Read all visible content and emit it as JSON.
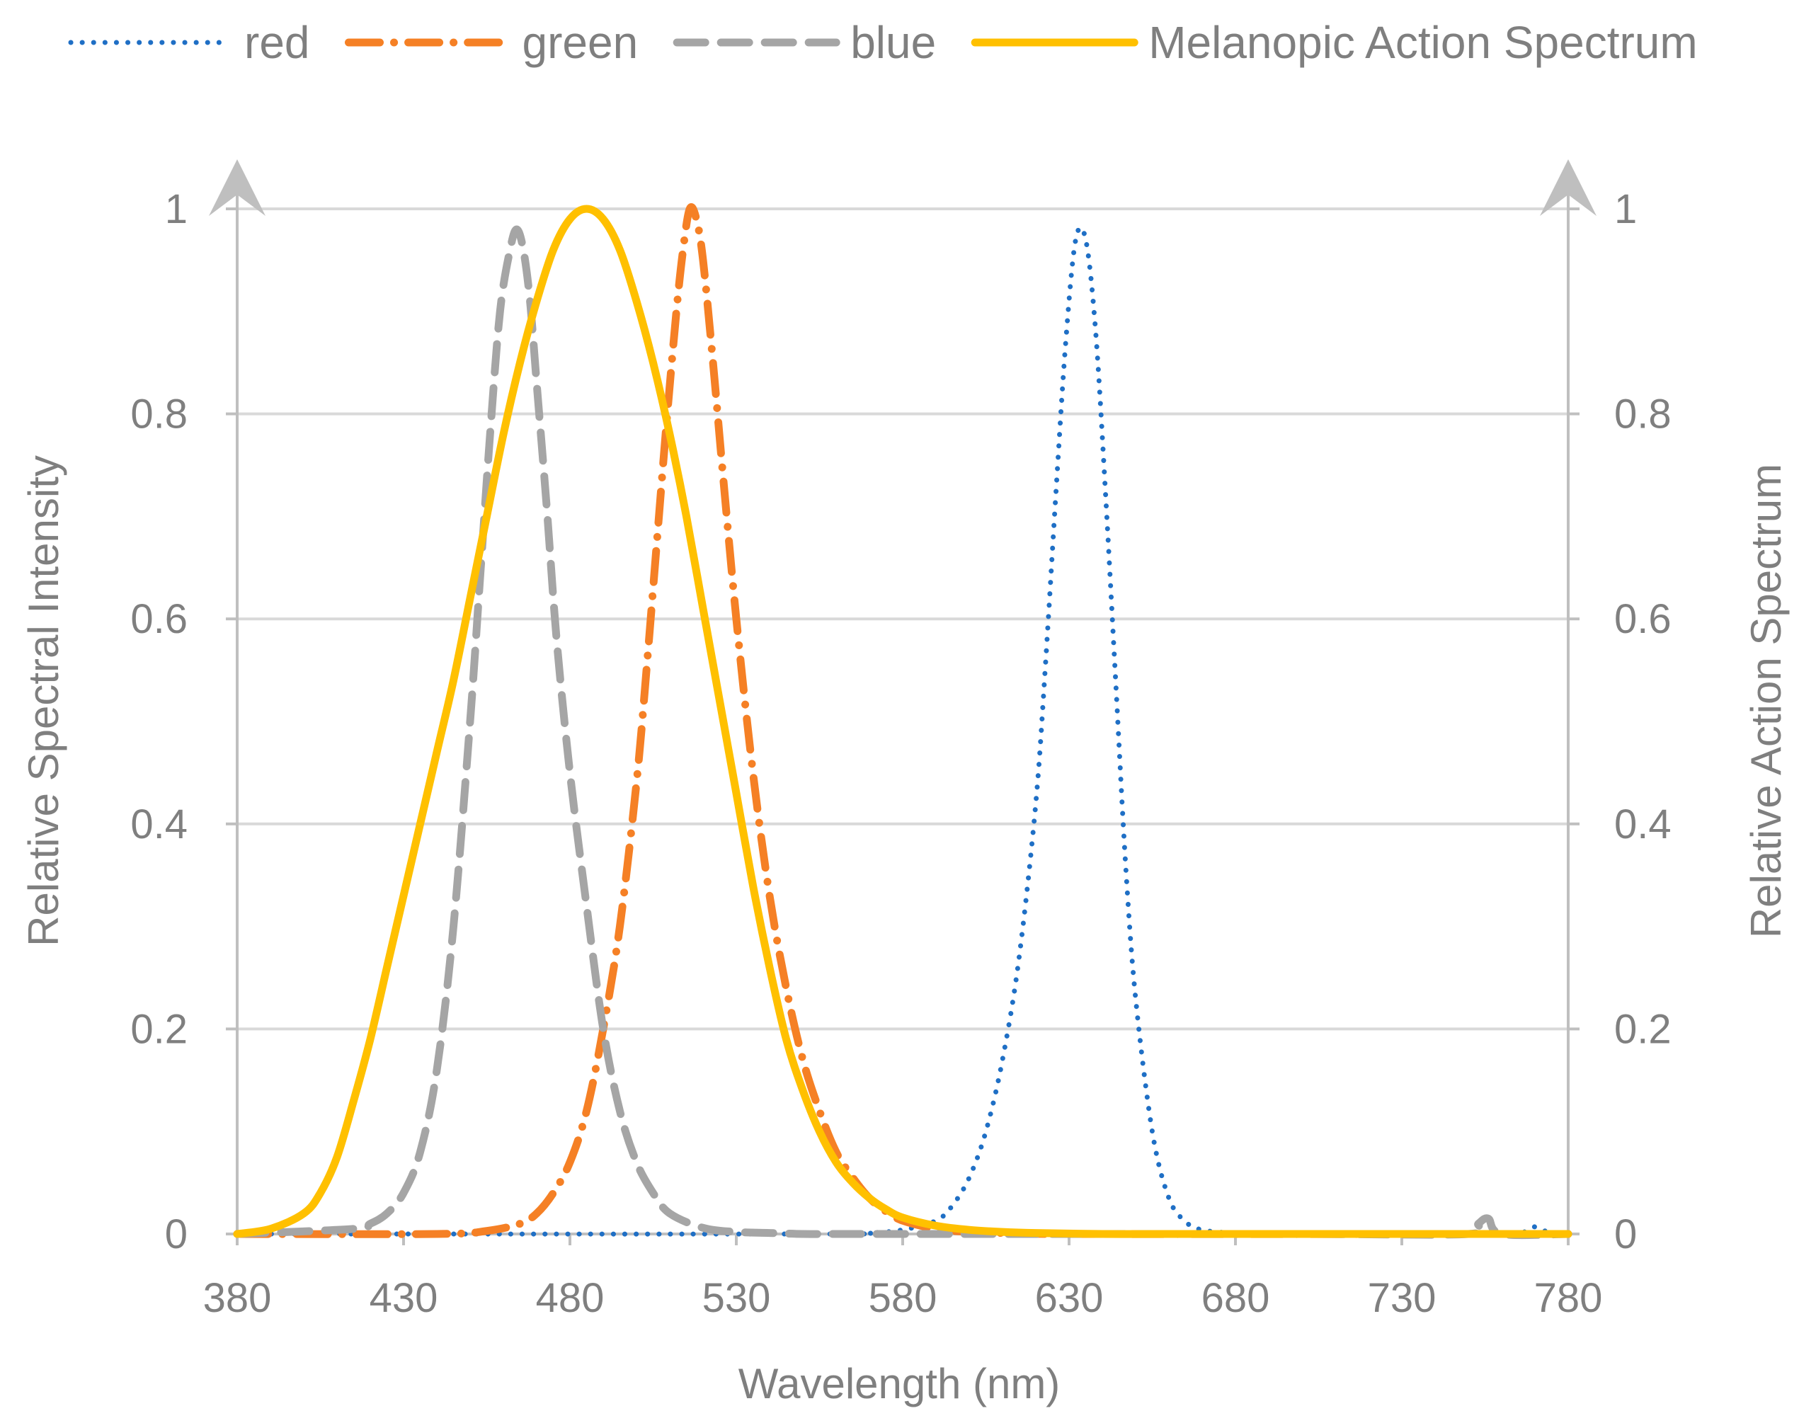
{
  "chart_data": {
    "type": "line",
    "title": "",
    "xlabel": "Wavelength (nm)",
    "ylabel": "Relative Spectral Intensity",
    "y2label": "Relative Action Spectrum",
    "xlim": [
      380,
      780
    ],
    "ylim": [
      0,
      1
    ],
    "y2lim": [
      0,
      1
    ],
    "x_ticks": [
      380,
      430,
      480,
      530,
      580,
      630,
      680,
      730,
      780
    ],
    "y_ticks": [
      0,
      0.2,
      0.4,
      0.6,
      0.8,
      1
    ],
    "y2_ticks": [
      0,
      0.2,
      0.4,
      0.6,
      0.8,
      1
    ],
    "y_tick_labels": [
      "0",
      "0.2",
      "0.4",
      "0.6",
      "0.8",
      "1"
    ],
    "y2_tick_labels": [
      "0",
      "0.2",
      "0.4",
      "0.6",
      "0.8",
      "1"
    ],
    "grid": true,
    "legend_position": "top",
    "series": [
      {
        "name": "red",
        "axis": "left",
        "color": "#1f6fc5",
        "style": "dotted",
        "x": [
          380,
          560,
          570,
          580,
          590,
          595,
          600,
          605,
          610,
          615,
          620,
          623,
          626,
          629,
          632,
          635,
          638,
          641,
          644,
          647,
          650,
          655,
          660,
          665,
          670,
          680,
          700,
          750,
          755,
          765,
          770,
          775,
          780
        ],
        "y": [
          0,
          0,
          0.001,
          0.004,
          0.013,
          0.028,
          0.055,
          0.1,
          0.17,
          0.27,
          0.42,
          0.56,
          0.72,
          0.87,
          0.97,
          0.97,
          0.88,
          0.72,
          0.54,
          0.36,
          0.23,
          0.1,
          0.035,
          0.012,
          0.004,
          0.001,
          0,
          0,
          0,
          0,
          0.007,
          0,
          0
        ]
      },
      {
        "name": "green",
        "axis": "left",
        "color": "#f58025",
        "style": "dash-dot",
        "x": [
          380,
          440,
          455,
          465,
          470,
          475,
          480,
          485,
          490,
          495,
          500,
          503,
          506,
          509,
          512,
          514,
          516,
          518,
          520,
          523,
          526,
          530,
          535,
          540,
          545,
          550,
          555,
          560,
          565,
          570,
          575,
          580,
          590,
          600,
          610,
          630,
          780
        ],
        "y": [
          0,
          0,
          0.003,
          0.01,
          0.02,
          0.04,
          0.07,
          0.12,
          0.2,
          0.3,
          0.44,
          0.55,
          0.67,
          0.79,
          0.9,
          0.96,
          1.0,
          0.99,
          0.95,
          0.85,
          0.74,
          0.6,
          0.45,
          0.33,
          0.24,
          0.17,
          0.12,
          0.08,
          0.055,
          0.035,
          0.022,
          0.013,
          0.005,
          0.002,
          0.001,
          0,
          0
        ]
      },
      {
        "name": "blue",
        "axis": "left",
        "color": "#a5a5a5",
        "style": "dashed",
        "x": [
          380,
          415,
          420,
          425,
          430,
          435,
          440,
          445,
          450,
          453,
          456,
          459,
          462,
          464,
          466,
          468,
          470,
          473,
          476,
          480,
          485,
          490,
          495,
          500,
          505,
          510,
          520,
          530,
          540,
          550,
          560,
          580,
          600,
          700,
          750,
          753,
          756,
          760,
          780
        ],
        "y": [
          0,
          0.005,
          0.01,
          0.02,
          0.04,
          0.08,
          0.16,
          0.3,
          0.5,
          0.64,
          0.78,
          0.9,
          0.96,
          0.98,
          0.96,
          0.91,
          0.83,
          0.71,
          0.58,
          0.45,
          0.32,
          0.2,
          0.12,
          0.07,
          0.04,
          0.02,
          0.006,
          0.002,
          0.001,
          0,
          0,
          0,
          0,
          0,
          0,
          0.01,
          0.015,
          0,
          0
        ]
      },
      {
        "name": "Melanopic Action Spectrum",
        "axis": "right",
        "color": "#ffc000",
        "style": "solid",
        "x": [
          380,
          390,
          400,
          405,
          410,
          415,
          420,
          425,
          430,
          435,
          440,
          445,
          450,
          455,
          460,
          465,
          470,
          475,
          480,
          485,
          490,
          495,
          500,
          505,
          510,
          515,
          520,
          525,
          530,
          535,
          540,
          545,
          550,
          555,
          560,
          565,
          570,
          575,
          580,
          590,
          600,
          610,
          620,
          640,
          660,
          700,
          780
        ],
        "y": [
          0,
          0.005,
          0.02,
          0.04,
          0.075,
          0.13,
          0.19,
          0.26,
          0.33,
          0.4,
          0.47,
          0.54,
          0.62,
          0.7,
          0.78,
          0.85,
          0.91,
          0.96,
          0.99,
          1.0,
          0.99,
          0.96,
          0.91,
          0.85,
          0.78,
          0.7,
          0.61,
          0.52,
          0.43,
          0.34,
          0.26,
          0.19,
          0.14,
          0.1,
          0.07,
          0.05,
          0.035,
          0.024,
          0.016,
          0.008,
          0.004,
          0.002,
          0.001,
          0,
          0,
          0,
          0
        ]
      }
    ]
  }
}
